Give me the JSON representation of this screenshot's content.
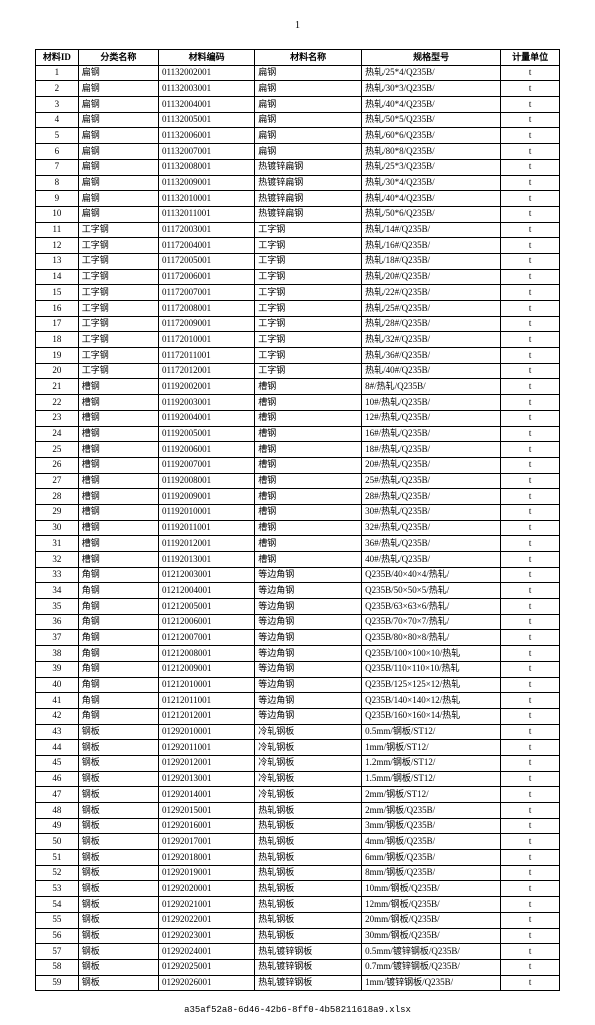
{
  "page_number": "1",
  "footer_text": "a35af52a8-6d46-42b6-8ff0-4b58211618a9.xlsx",
  "columns": [
    "材料ID",
    "分类名称",
    "材料编码",
    "材料名称",
    "规格型号",
    "计量单位"
  ],
  "rows": [
    [
      "1",
      "扁钢",
      "01132002001",
      "扁钢",
      "热轧/25*4/Q235B/",
      "t"
    ],
    [
      "2",
      "扁钢",
      "01132003001",
      "扁钢",
      "热轧/30*3/Q235B/",
      "t"
    ],
    [
      "3",
      "扁钢",
      "01132004001",
      "扁钢",
      "热轧/40*4/Q235B/",
      "t"
    ],
    [
      "4",
      "扁钢",
      "01132005001",
      "扁钢",
      "热轧/50*5/Q235B/",
      "t"
    ],
    [
      "5",
      "扁钢",
      "01132006001",
      "扁钢",
      "热轧/60*6/Q235B/",
      "t"
    ],
    [
      "6",
      "扁钢",
      "01132007001",
      "扁钢",
      "热轧/80*8/Q235B/",
      "t"
    ],
    [
      "7",
      "扁钢",
      "01132008001",
      "热镀锌扁钢",
      "热轧/25*3/Q235B/",
      "t"
    ],
    [
      "8",
      "扁钢",
      "01132009001",
      "热镀锌扁钢",
      "热轧/30*4/Q235B/",
      "t"
    ],
    [
      "9",
      "扁钢",
      "01132010001",
      "热镀锌扁钢",
      "热轧/40*4/Q235B/",
      "t"
    ],
    [
      "10",
      "扁钢",
      "01132011001",
      "热镀锌扁钢",
      "热轧/50*6/Q235B/",
      "t"
    ],
    [
      "11",
      "工字钢",
      "01172003001",
      "工字钢",
      "热轧/14#/Q235B/",
      "t"
    ],
    [
      "12",
      "工字钢",
      "01172004001",
      "工字钢",
      "热轧/16#/Q235B/",
      "t"
    ],
    [
      "13",
      "工字钢",
      "01172005001",
      "工字钢",
      "热轧/18#/Q235B/",
      "t"
    ],
    [
      "14",
      "工字钢",
      "01172006001",
      "工字钢",
      "热轧/20#/Q235B/",
      "t"
    ],
    [
      "15",
      "工字钢",
      "01172007001",
      "工字钢",
      "热轧/22#/Q235B/",
      "t"
    ],
    [
      "16",
      "工字钢",
      "01172008001",
      "工字钢",
      "热轧/25#/Q235B/",
      "t"
    ],
    [
      "17",
      "工字钢",
      "01172009001",
      "工字钢",
      "热轧/28#/Q235B/",
      "t"
    ],
    [
      "18",
      "工字钢",
      "01172010001",
      "工字钢",
      "热轧/32#/Q235B/",
      "t"
    ],
    [
      "19",
      "工字钢",
      "01172011001",
      "工字钢",
      "热轧/36#/Q235B/",
      "t"
    ],
    [
      "20",
      "工字钢",
      "01172012001",
      "工字钢",
      "热轧/40#/Q235B/",
      "t"
    ],
    [
      "21",
      "槽钢",
      "01192002001",
      "槽钢",
      "8#/热轧/Q235B/",
      "t"
    ],
    [
      "22",
      "槽钢",
      "01192003001",
      "槽钢",
      "10#/热轧/Q235B/",
      "t"
    ],
    [
      "23",
      "槽钢",
      "01192004001",
      "槽钢",
      "12#/热轧/Q235B/",
      "t"
    ],
    [
      "24",
      "槽钢",
      "01192005001",
      "槽钢",
      "16#/热轧/Q235B/",
      "t"
    ],
    [
      "25",
      "槽钢",
      "01192006001",
      "槽钢",
      "18#/热轧/Q235B/",
      "t"
    ],
    [
      "26",
      "槽钢",
      "01192007001",
      "槽钢",
      "20#/热轧/Q235B/",
      "t"
    ],
    [
      "27",
      "槽钢",
      "01192008001",
      "槽钢",
      "25#/热轧/Q235B/",
      "t"
    ],
    [
      "28",
      "槽钢",
      "01192009001",
      "槽钢",
      "28#/热轧/Q235B/",
      "t"
    ],
    [
      "29",
      "槽钢",
      "01192010001",
      "槽钢",
      "30#/热轧/Q235B/",
      "t"
    ],
    [
      "30",
      "槽钢",
      "01192011001",
      "槽钢",
      "32#/热轧/Q235B/",
      "t"
    ],
    [
      "31",
      "槽钢",
      "01192012001",
      "槽钢",
      "36#/热轧/Q235B/",
      "t"
    ],
    [
      "32",
      "槽钢",
      "01192013001",
      "槽钢",
      "40#/热轧/Q235B/",
      "t"
    ],
    [
      "33",
      "角钢",
      "01212003001",
      "等边角钢",
      "Q235B/40×40×4/热轧/",
      "t"
    ],
    [
      "34",
      "角钢",
      "01212004001",
      "等边角钢",
      "Q235B/50×50×5/热轧/",
      "t"
    ],
    [
      "35",
      "角钢",
      "01212005001",
      "等边角钢",
      "Q235B/63×63×6/热轧/",
      "t"
    ],
    [
      "36",
      "角钢",
      "01212006001",
      "等边角钢",
      "Q235B/70×70×7/热轧/",
      "t"
    ],
    [
      "37",
      "角钢",
      "01212007001",
      "等边角钢",
      "Q235B/80×80×8/热轧/",
      "t"
    ],
    [
      "38",
      "角钢",
      "01212008001",
      "等边角钢",
      "Q235B/100×100×10/热轧",
      "t"
    ],
    [
      "39",
      "角钢",
      "01212009001",
      "等边角钢",
      "Q235B/110×110×10/热轧",
      "t"
    ],
    [
      "40",
      "角钢",
      "01212010001",
      "等边角钢",
      "Q235B/125×125×12/热轧",
      "t"
    ],
    [
      "41",
      "角钢",
      "01212011001",
      "等边角钢",
      "Q235B/140×140×12/热轧",
      "t"
    ],
    [
      "42",
      "角钢",
      "01212012001",
      "等边角钢",
      "Q235B/160×160×14/热轧",
      "t"
    ],
    [
      "43",
      "钢板",
      "01292010001",
      "冷轧钢板",
      "0.5mm/钢板/ST12/",
      "t"
    ],
    [
      "44",
      "钢板",
      "01292011001",
      "冷轧钢板",
      "1mm/钢板/ST12/",
      "t"
    ],
    [
      "45",
      "钢板",
      "01292012001",
      "冷轧钢板",
      "1.2mm/钢板/ST12/",
      "t"
    ],
    [
      "46",
      "钢板",
      "01292013001",
      "冷轧钢板",
      "1.5mm/钢板/ST12/",
      "t"
    ],
    [
      "47",
      "钢板",
      "01292014001",
      "冷轧钢板",
      "2mm/钢板/ST12/",
      "t"
    ],
    [
      "48",
      "钢板",
      "01292015001",
      "热轧钢板",
      "2mm/钢板/Q235B/",
      "t"
    ],
    [
      "49",
      "钢板",
      "01292016001",
      "热轧钢板",
      "3mm/钢板/Q235B/",
      "t"
    ],
    [
      "50",
      "钢板",
      "01292017001",
      "热轧钢板",
      "4mm/钢板/Q235B/",
      "t"
    ],
    [
      "51",
      "钢板",
      "01292018001",
      "热轧钢板",
      "6mm/钢板/Q235B/",
      "t"
    ],
    [
      "52",
      "钢板",
      "01292019001",
      "热轧钢板",
      "8mm/钢板/Q235B/",
      "t"
    ],
    [
      "53",
      "钢板",
      "01292020001",
      "热轧钢板",
      "10mm/钢板/Q235B/",
      "t"
    ],
    [
      "54",
      "钢板",
      "01292021001",
      "热轧钢板",
      "12mm/钢板/Q235B/",
      "t"
    ],
    [
      "55",
      "钢板",
      "01292022001",
      "热轧钢板",
      "20mm/钢板/Q235B/",
      "t"
    ],
    [
      "56",
      "钢板",
      "01292023001",
      "热轧钢板",
      "30mm/钢板/Q235B/",
      "t"
    ],
    [
      "57",
      "钢板",
      "01292024001",
      "热轧镀锌钢板",
      "0.5mm/镀锌钢板/Q235B/",
      "t"
    ],
    [
      "58",
      "钢板",
      "01292025001",
      "热轧镀锌钢板",
      "0.7mm/镀锌钢板/Q235B/",
      "t"
    ],
    [
      "59",
      "钢板",
      "01292026001",
      "热轧镀锌钢板",
      "1mm/镀锌钢板/Q235B/",
      "t"
    ]
  ]
}
